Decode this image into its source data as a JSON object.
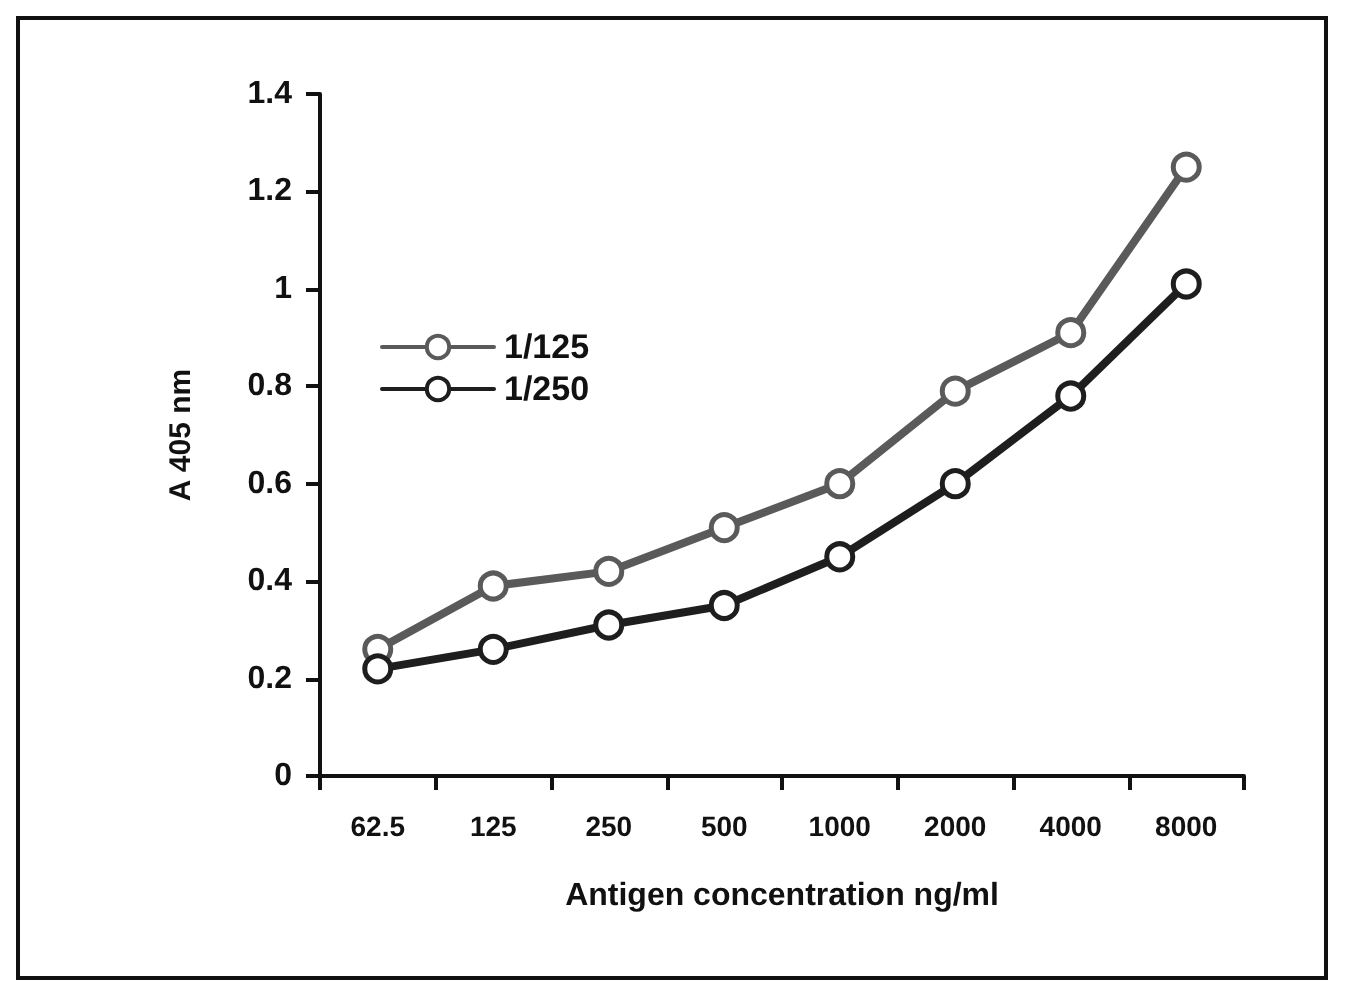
{
  "chart_data": {
    "type": "line",
    "xlabel": "Antigen concentration ng/ml",
    "ylabel": "A 405 nm",
    "categories": [
      "62.5",
      "125",
      "250",
      "500",
      "1000",
      "2000",
      "4000",
      "8000"
    ],
    "series": [
      {
        "name": "1/125",
        "color": "#5a5a5a",
        "values": [
          0.26,
          0.39,
          0.42,
          0.51,
          0.6,
          0.79,
          0.91,
          1.25
        ]
      },
      {
        "name": "1/250",
        "color": "#1e1e1e",
        "values": [
          0.22,
          0.26,
          0.31,
          0.35,
          0.45,
          0.6,
          0.78,
          1.01
        ]
      }
    ],
    "ylim": [
      0,
      1.4
    ],
    "yticks": [
      0,
      0.2,
      0.4,
      0.6,
      0.8,
      1,
      1.2,
      1.4
    ],
    "grid": false,
    "legend": "top left",
    "marker": "circle",
    "line_style": "solid"
  }
}
